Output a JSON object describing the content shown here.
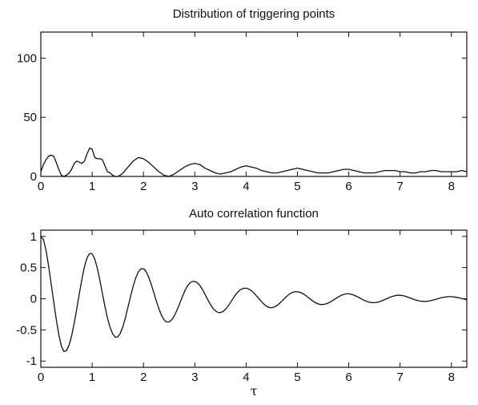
{
  "chart_data": [
    {
      "type": "line",
      "title": "Distribution of triggering points",
      "xlabel": "",
      "ylabel": "",
      "xlim": [
        0,
        8.3
      ],
      "ylim": [
        0,
        122
      ],
      "xticks": [
        0,
        1,
        2,
        3,
        4,
        5,
        6,
        7,
        8
      ],
      "yticks": [
        0,
        50,
        100
      ],
      "grid": false,
      "series": [
        {
          "x": [
            0,
            0.05,
            0.1,
            0.15,
            0.2,
            0.25,
            0.3,
            0.35,
            0.4,
            0.45,
            0.5,
            0.55,
            0.6,
            0.65,
            0.7,
            0.75,
            0.8,
            0.85,
            0.9,
            0.95,
            1.0,
            1.05,
            1.1,
            1.15,
            1.2,
            1.25,
            1.3,
            1.35,
            1.4,
            1.45,
            1.5,
            1.55,
            1.6,
            1.7,
            1.8,
            1.9,
            2.0,
            2.1,
            2.2,
            2.3,
            2.4,
            2.5,
            2.6,
            2.7,
            2.8,
            2.9,
            3.0,
            3.1,
            3.2,
            3.3,
            3.4,
            3.5,
            3.6,
            3.7,
            3.8,
            3.9,
            4.0,
            4.1,
            4.2,
            4.3,
            4.4,
            4.5,
            4.6,
            4.7,
            4.8,
            4.9,
            5.0,
            5.1,
            5.2,
            5.3,
            5.4,
            5.5,
            5.6,
            5.7,
            5.8,
            5.9,
            6.0,
            6.1,
            6.2,
            6.3,
            6.4,
            6.5,
            6.6,
            6.7,
            6.8,
            6.9,
            7.0,
            7.1,
            7.2,
            7.3,
            7.4,
            7.5,
            7.6,
            7.7,
            7.8,
            7.9,
            8.0,
            8.1,
            8.2,
            8.3
          ],
          "values": [
            4,
            10,
            14,
            17,
            18,
            17,
            12,
            6,
            1,
            0,
            1,
            3,
            6,
            11,
            13,
            12,
            11,
            13,
            19,
            24,
            23,
            16,
            15,
            15,
            14,
            9,
            4,
            3,
            1,
            0,
            0,
            1,
            3,
            8,
            13,
            16,
            15,
            12,
            8,
            4,
            1,
            0,
            2,
            5,
            8,
            10,
            11,
            10,
            7,
            5,
            3,
            2,
            3,
            4,
            6,
            8,
            9,
            8,
            7,
            5,
            4,
            3,
            3,
            4,
            5,
            6,
            7,
            6,
            5,
            4,
            3,
            3,
            3,
            4,
            5,
            6,
            6,
            5,
            4,
            3,
            3,
            3,
            4,
            5,
            5,
            5,
            4,
            4,
            3,
            3,
            4,
            4,
            5,
            5,
            4,
            4,
            4,
            4,
            5,
            4
          ]
        }
      ]
    },
    {
      "type": "line",
      "title": "Auto correlation function",
      "xlabel": "τ",
      "ylabel": "",
      "xlim": [
        0,
        8.3
      ],
      "ylim": [
        -1.1,
        1.1
      ],
      "xticks": [
        0,
        1,
        2,
        3,
        4,
        5,
        6,
        7,
        8
      ],
      "yticks": [
        -1,
        -0.5,
        0,
        0.5,
        1
      ],
      "grid": false,
      "series": [
        {
          "x": [
            0,
            0.05,
            0.1,
            0.15,
            0.2,
            0.25,
            0.3,
            0.35,
            0.4,
            0.45,
            0.5,
            0.55,
            0.6,
            0.65,
            0.7,
            0.75,
            0.8,
            0.85,
            0.9,
            0.95,
            1.0,
            1.05,
            1.1,
            1.15,
            1.2,
            1.25,
            1.3,
            1.35,
            1.4,
            1.45,
            1.5,
            1.55,
            1.6,
            1.65,
            1.7,
            1.75,
            1.8,
            1.85,
            1.9,
            1.95,
            2.0,
            2.05,
            2.1,
            2.15,
            2.2,
            2.25,
            2.3,
            2.35,
            2.4,
            2.45,
            2.5,
            2.55,
            2.6,
            2.65,
            2.7,
            2.75,
            2.8,
            2.85,
            2.9,
            2.95,
            3.0,
            3.05,
            3.1,
            3.15,
            3.2,
            3.25,
            3.3,
            3.35,
            3.4,
            3.45,
            3.5,
            3.55,
            3.6,
            3.65,
            3.7,
            3.75,
            3.8,
            3.85,
            3.9,
            3.95,
            4.0,
            4.05,
            4.1,
            4.15,
            4.2,
            4.25,
            4.3,
            4.35,
            4.4,
            4.45,
            4.5,
            4.55,
            4.6,
            4.65,
            4.7,
            4.75,
            4.8,
            4.85,
            4.9,
            4.95,
            5.0,
            5.05,
            5.1,
            5.15,
            5.2,
            5.25,
            5.3,
            5.35,
            5.4,
            5.45,
            5.5,
            5.55,
            5.6,
            5.65,
            5.7,
            5.75,
            5.8,
            5.85,
            5.9,
            5.95,
            6.0,
            6.05,
            6.1,
            6.15,
            6.2,
            6.25,
            6.3,
            6.35,
            6.4,
            6.45,
            6.5,
            6.55,
            6.6,
            6.65,
            6.7,
            6.75,
            6.8,
            6.85,
            6.9,
            6.95,
            7.0,
            7.05,
            7.1,
            7.15,
            7.2,
            7.25,
            7.3,
            7.35,
            7.4,
            7.45,
            7.5,
            7.55,
            7.6,
            7.65,
            7.7,
            7.75,
            7.8,
            7.85,
            7.9,
            7.95,
            8.0,
            8.05,
            8.1,
            8.15,
            8.2,
            8.25,
            8.3
          ],
          "values": [
            1.0,
            0.952,
            0.784,
            0.534,
            0.248,
            -0.043,
            -0.326,
            -0.574,
            -0.756,
            -0.847,
            -0.832,
            -0.742,
            -0.594,
            -0.391,
            -0.161,
            0.081,
            0.314,
            0.513,
            0.655,
            0.726,
            0.72,
            0.639,
            0.492,
            0.298,
            0.086,
            -0.125,
            -0.314,
            -0.46,
            -0.564,
            -0.616,
            -0.612,
            -0.553,
            -0.443,
            -0.296,
            -0.127,
            0.045,
            0.205,
            0.337,
            0.431,
            0.48,
            0.482,
            0.437,
            0.35,
            0.234,
            0.101,
            -0.034,
            -0.159,
            -0.264,
            -0.337,
            -0.373,
            -0.372,
            -0.338,
            -0.275,
            -0.188,
            -0.087,
            0.018,
            0.117,
            0.198,
            0.252,
            0.277,
            0.278,
            0.256,
            0.211,
            0.148,
            0.071,
            -0.01,
            -0.086,
            -0.149,
            -0.194,
            -0.219,
            -0.223,
            -0.205,
            -0.168,
            -0.116,
            -0.054,
            0.01,
            0.07,
            0.118,
            0.151,
            0.167,
            0.169,
            0.157,
            0.131,
            0.094,
            0.049,
            0.001,
            -0.047,
            -0.089,
            -0.121,
            -0.14,
            -0.144,
            -0.133,
            -0.109,
            -0.076,
            -0.036,
            0.005,
            0.045,
            0.078,
            0.101,
            0.112,
            0.112,
            0.103,
            0.085,
            0.059,
            0.027,
            -0.005,
            -0.036,
            -0.063,
            -0.082,
            -0.092,
            -0.092,
            -0.085,
            -0.07,
            -0.048,
            -0.022,
            0.005,
            0.031,
            0.053,
            0.069,
            0.078,
            0.078,
            0.071,
            0.058,
            0.04,
            0.019,
            -0.004,
            -0.025,
            -0.043,
            -0.056,
            -0.062,
            -0.063,
            -0.058,
            -0.047,
            -0.032,
            -0.014,
            0.005,
            0.023,
            0.038,
            0.049,
            0.055,
            0.055,
            0.05,
            0.04,
            0.026,
            0.011,
            -0.005,
            -0.019,
            -0.031,
            -0.039,
            -0.042,
            -0.042,
            -0.038,
            -0.03,
            -0.02,
            -0.008,
            0.004,
            0.015,
            0.024,
            0.03,
            0.033,
            0.033,
            0.029,
            0.022,
            0.014,
            0.004,
            -0.005,
            -0.014
          ]
        }
      ]
    }
  ]
}
